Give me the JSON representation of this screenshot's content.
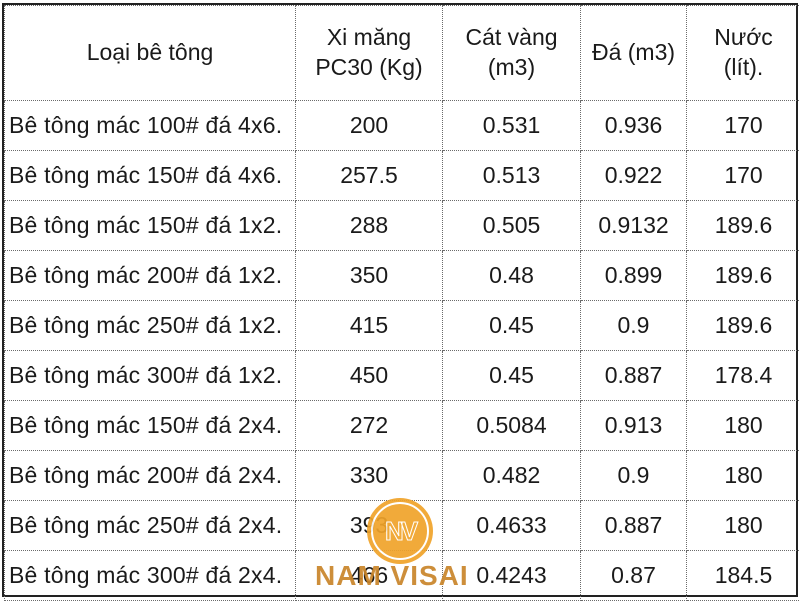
{
  "table": {
    "headers": [
      {
        "lines": [
          "Loại bê tông"
        ]
      },
      {
        "lines": [
          "Xi măng",
          "PC30 (Kg)"
        ]
      },
      {
        "lines": [
          "Cát vàng",
          "(m3)"
        ]
      },
      {
        "lines": [
          "Đá (m3)"
        ]
      },
      {
        "lines": [
          "Nước",
          "(lít)."
        ]
      }
    ],
    "rows": [
      {
        "type": "Bê tông mác 100# đá 4x6.",
        "cement": "200",
        "sand": "0.531",
        "stone": "0.936",
        "water": "170"
      },
      {
        "type": "Bê tông mác 150# đá 4x6.",
        "cement": "257.5",
        "sand": "0.513",
        "stone": "0.922",
        "water": "170"
      },
      {
        "type": "Bê tông mác 150# đá 1x2.",
        "cement": "288",
        "sand": "0.505",
        "stone": "0.9132",
        "water": "189.6"
      },
      {
        "type": "Bê tông mác 200# đá 1x2.",
        "cement": "350",
        "sand": "0.48",
        "stone": "0.899",
        "water": "189.6"
      },
      {
        "type": "Bê tông mác 250# đá 1x2.",
        "cement": "415",
        "sand": "0.45",
        "stone": "0.9",
        "water": "189.6"
      },
      {
        "type": "Bê tông mác 300# đá 1x2.",
        "cement": "450",
        "sand": "0.45",
        "stone": "0.887",
        "water": "178.4"
      },
      {
        "type": "Bê tông mác 150# đá 2x4.",
        "cement": "272",
        "sand": "0.5084",
        "stone": "0.913",
        "water": "180"
      },
      {
        "type": "Bê tông mác 200# đá 2x4.",
        "cement": "330",
        "sand": "0.482",
        "stone": "0.9",
        "water": "180"
      },
      {
        "type": "Bê tông mác 250# đá 2x4.",
        "cement": "393",
        "sand": "0.4633",
        "stone": "0.887",
        "water": "180"
      },
      {
        "type": "Bê tông mác 300# đá 2x4.",
        "cement": "466",
        "sand": "0.4243",
        "stone": "0.87",
        "water": "184.5"
      }
    ]
  },
  "watermark": {
    "mark": "NV",
    "text": "NAM VISAI",
    "circle_color": "#f0a32a",
    "text_color": "#c9852a"
  }
}
